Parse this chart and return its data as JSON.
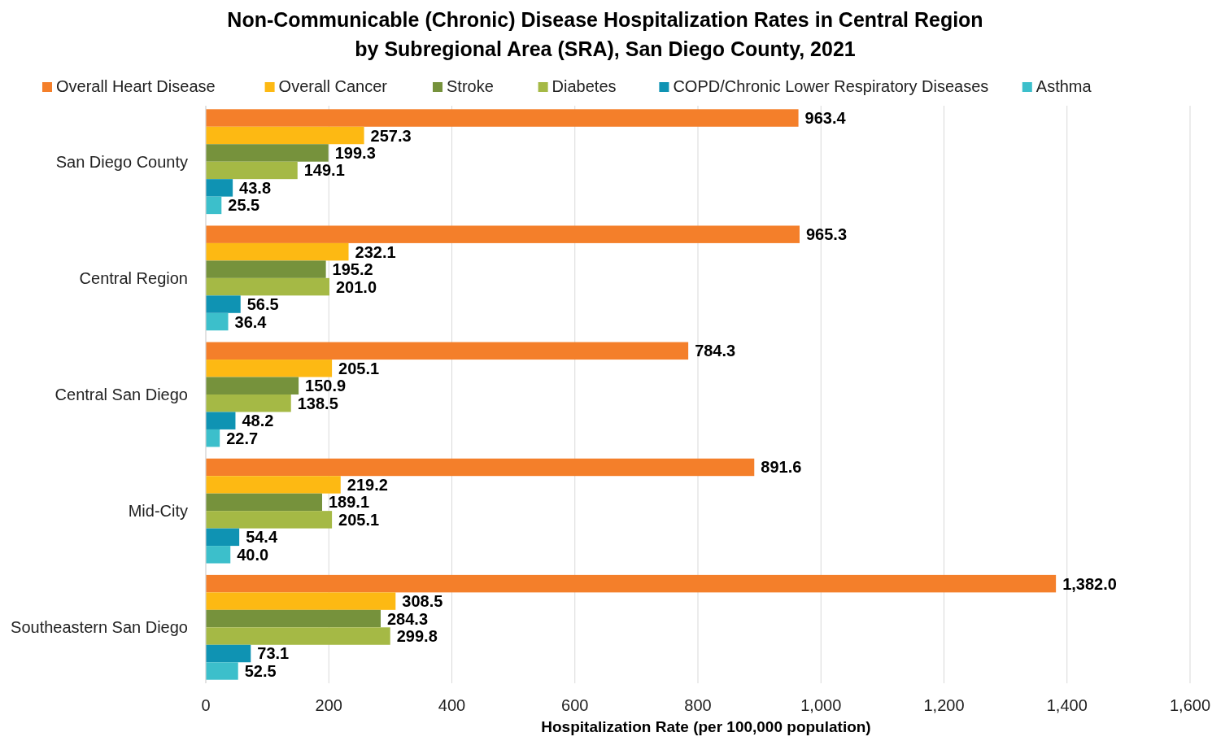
{
  "chart_data": {
    "type": "bar",
    "orientation": "horizontal",
    "title": "Non-Communicable (Chronic) Disease Hospitalization Rates in Central Region\nby Subregional Area (SRA), San Diego County, 2021",
    "xlabel": "Hospitalization Rate (per 100,000 population)",
    "categories": [
      "San Diego County",
      "Central Region",
      "Central San Diego",
      "Mid-City",
      "Southeastern San Diego"
    ],
    "xlim": [
      0,
      1600
    ],
    "xticks": [
      0,
      {
        "value": 200,
        "label": "200"
      },
      {
        "value": 400,
        "label": "400"
      },
      {
        "value": 600,
        "label": "600"
      },
      {
        "value": 800,
        "label": "800"
      },
      {
        "value": 1000,
        "label": "1,000"
      },
      {
        "value": 1200,
        "label": "1,200"
      },
      {
        "value": 1400,
        "label": "1,400"
      },
      {
        "value": 1600,
        "label": "1,600"
      }
    ],
    "grid": "x",
    "legend": "top",
    "series": [
      {
        "name": "Overall Heart Disease",
        "color": "#f47f2a",
        "values": [
          963.4,
          965.3,
          784.3,
          891.6,
          1382.0
        ],
        "value_labels": [
          "963.4",
          "965.3",
          "784.3",
          "891.6",
          "1,382.0"
        ]
      },
      {
        "name": "Overall Cancer",
        "color": "#fdb913",
        "values": [
          257.3,
          232.1,
          205.1,
          219.2,
          308.5
        ],
        "value_labels": [
          "257.3",
          "232.1",
          "205.1",
          "219.2",
          "308.5"
        ]
      },
      {
        "name": "Stroke",
        "color": "#76923c",
        "values": [
          199.3,
          195.2,
          150.9,
          189.1,
          284.3
        ],
        "value_labels": [
          "199.3",
          "195.2",
          "150.9",
          "189.1",
          "284.3"
        ]
      },
      {
        "name": "Diabetes",
        "color": "#a5b945",
        "values": [
          149.1,
          201.0,
          138.5,
          205.1,
          299.8
        ],
        "value_labels": [
          "149.1",
          "201.0",
          "138.5",
          "205.1",
          "299.8"
        ]
      },
      {
        "name": "COPD/Chronic Lower Respiratory Diseases",
        "color": "#0f93b3",
        "values": [
          43.8,
          56.5,
          48.2,
          54.4,
          73.1
        ],
        "value_labels": [
          "43.8",
          "56.5",
          "48.2",
          "54.4",
          "73.1"
        ]
      },
      {
        "name": "Asthma",
        "color": "#3cbfcb",
        "values": [
          25.5,
          36.4,
          22.7,
          40.0,
          52.5
        ],
        "value_labels": [
          "25.5",
          "36.4",
          "22.7",
          "40.0",
          "52.5"
        ]
      }
    ]
  }
}
